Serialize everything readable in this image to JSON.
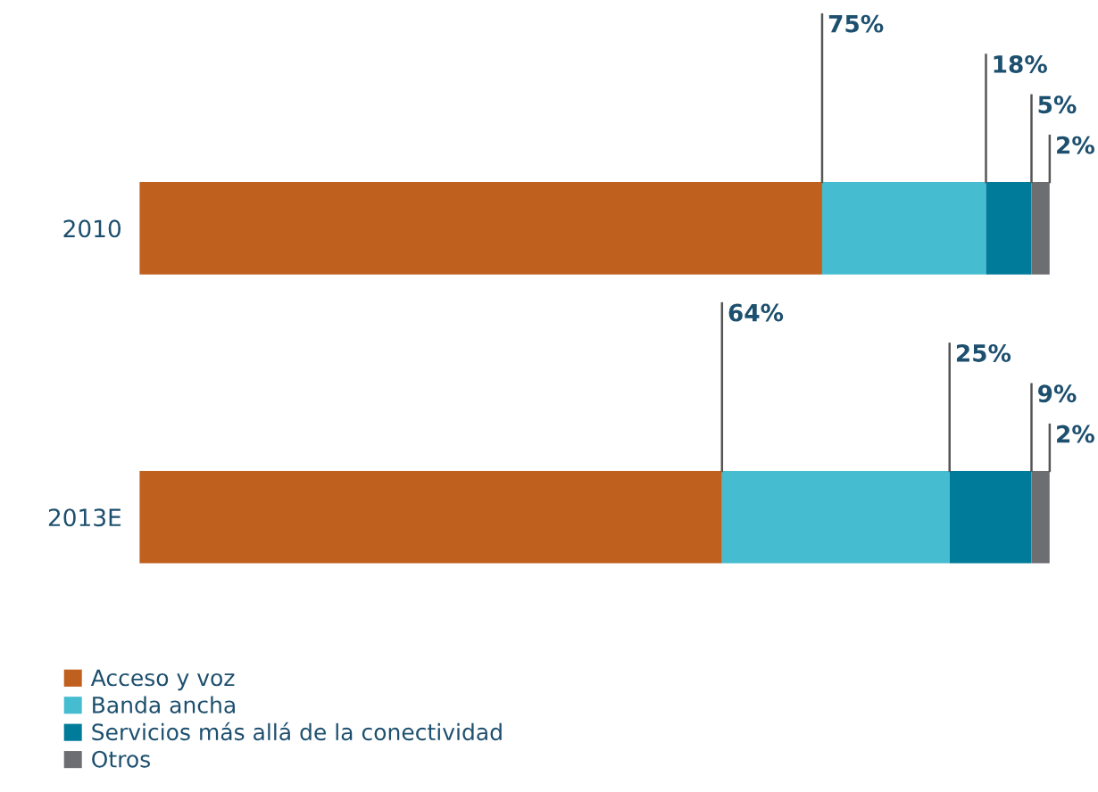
{
  "chart_data": {
    "type": "bar",
    "orientation": "horizontal",
    "stacked": true,
    "categories": [
      "2010",
      "2013E"
    ],
    "xlim": [
      0,
      100
    ],
    "tick_labels": "y",
    "legend": "bottom",
    "grid": false,
    "series": [
      {
        "name": "Acceso y voz",
        "color": "#c0601f",
        "values": [
          75,
          64
        ],
        "value_labels": [
          "75%",
          "64%"
        ]
      },
      {
        "name": "Banda ancha",
        "color": "#45bcd0",
        "values": [
          18,
          25
        ],
        "value_labels": [
          "18%",
          "25%"
        ]
      },
      {
        "name": "Servicios más allá de la conectividad",
        "color": "#007b9a",
        "values": [
          5,
          9
        ],
        "value_labels": [
          "5%",
          "9%"
        ]
      },
      {
        "name": "Otros",
        "color": "#6d6e71",
        "values": [
          2,
          2
        ],
        "value_labels": [
          "2%",
          "2%"
        ]
      }
    ]
  }
}
